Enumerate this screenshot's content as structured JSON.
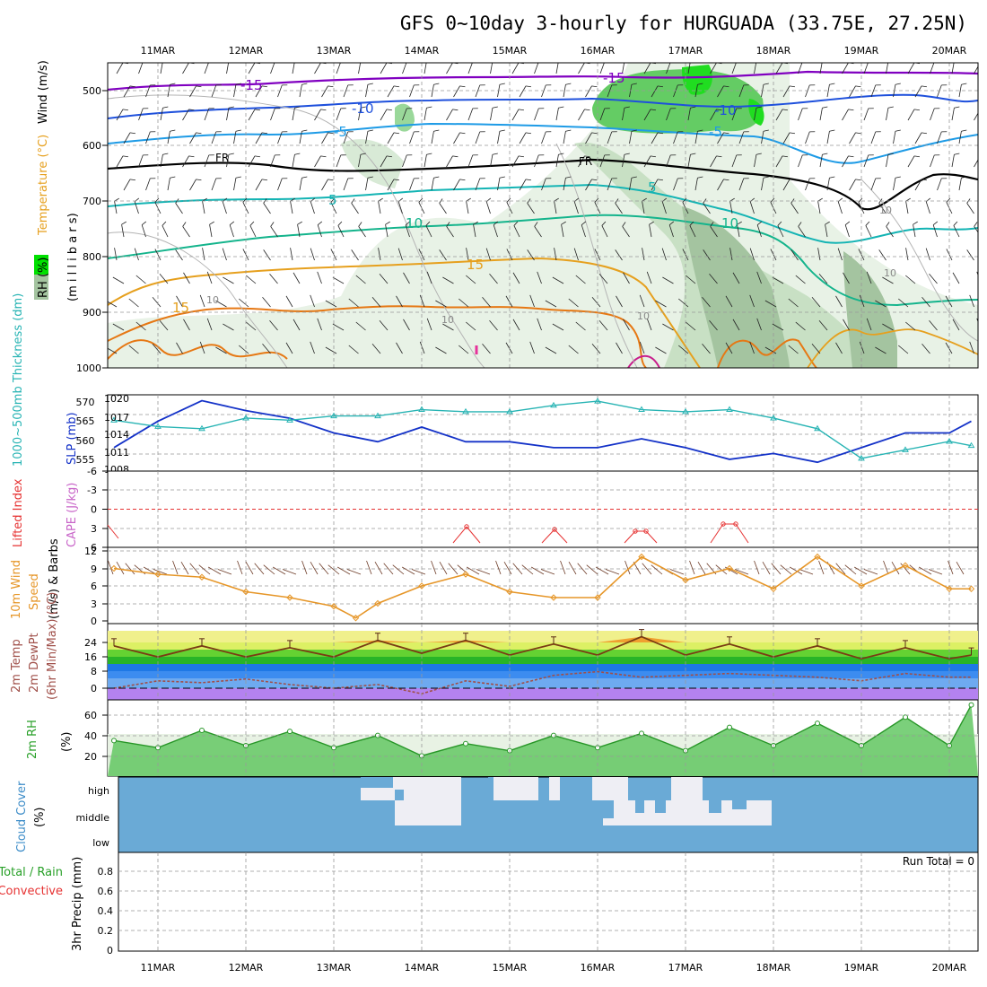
{
  "title": "GFS 0~10day 3-hourly for HURGUADA (33.75E, 27.25N)",
  "dates": [
    "11MAR",
    "12MAR",
    "13MAR",
    "14MAR",
    "15MAR",
    "16MAR",
    "17MAR",
    "18MAR",
    "19MAR",
    "20MAR"
  ],
  "colors": {
    "rh_green": "#00e000",
    "temp_purple": "#8000c0",
    "temp_blue": "#1e50dc",
    "temp_lightblue": "#1e9be6",
    "temp_cyan": "#14b4b4",
    "temp_teal": "#14b48c",
    "temp_orange": "#e6a01e",
    "temp_darkorange": "#e67814",
    "slp": "#1432c8",
    "thickness": "#28b4b4",
    "lifted": "#e63232",
    "cape": "#c864c8",
    "wind10m": "#e69628",
    "cloud": "#6aaad6",
    "rh2m": "#28a028"
  },
  "panels": {
    "upper": {
      "ylabel_rh": "RH (%)",
      "ylabel_temp": "Temperature (°C)",
      "ylabel_wind": "Wind (m/s)",
      "ylabel_mb": "(m i l l i b a r s)",
      "ticks": [
        "500",
        "600",
        "700",
        "800",
        "900",
        "1000"
      ],
      "labels": {
        "fr1": "FR",
        "fr2": "FR",
        "m15": "-15",
        "m15b": "-15",
        "m10": "-10",
        "m10b": "-10",
        "m5": "-5",
        "m5b": "-5",
        "p5": "5",
        "p5b": "5",
        "p10": "10",
        "p10b": "10",
        "p15": "15",
        "p15b": "15",
        "rh10a": "10",
        "rh10b": "10",
        "rh10c": "10",
        "rh10d": "10",
        "rh10e": "10"
      }
    },
    "slp": {
      "ylabel_left": "1000~500mb Thickness (dm)",
      "ylabel_right": "SLP (mb)",
      "ticks_left": [
        "570",
        "565",
        "560",
        "555"
      ],
      "ticks_right": [
        "1020",
        "1017",
        "1014",
        "1011",
        "1008"
      ]
    },
    "li": {
      "ylabel_left": "Lifted Index",
      "ylabel_right": "CAPE (J/kg)",
      "ticks": [
        "-6",
        "-3",
        "0",
        "3",
        "6"
      ]
    },
    "wind10": {
      "ylabel_left": "10m Wind",
      "ylabel_mid": "Speed",
      "ylabel_right": "(m/s) & Barbs",
      "ticks": [
        "12",
        "9",
        "6",
        "3",
        "0"
      ]
    },
    "temp2m": {
      "ylabel_a": "2m Temp",
      "ylabel_b": "2m DewPt",
      "ylabel_c": "(6hr Min/Max) (°C)",
      "ticks": [
        "24",
        "16",
        "8",
        "0"
      ]
    },
    "rh2m": {
      "ylabel": "2m RH",
      "unit": "(%)",
      "ticks": [
        "60",
        "40",
        "20"
      ]
    },
    "cloud": {
      "ylabel": "Cloud Cover",
      "unit": "(%)",
      "ticks": [
        "high",
        "middle",
        "low"
      ]
    },
    "precip": {
      "ylabel_a": "Total / Rain",
      "ylabel_b": "Convective",
      "ylabel_c": "3hr Precip (mm)",
      "ticks": [
        "0.8",
        "0.6",
        "0.4",
        "0.2",
        "0"
      ],
      "run_total": "Run Total = 0"
    }
  },
  "chart_data": [
    {
      "type": "line",
      "name": "SLP (mb)",
      "x": [
        "10MAR12",
        "11MAR00",
        "11MAR12",
        "12MAR00",
        "12MAR12",
        "13MAR00",
        "13MAR12",
        "14MAR00",
        "14MAR12",
        "15MAR00",
        "15MAR12",
        "16MAR00",
        "16MAR12",
        "17MAR00",
        "17MAR12",
        "18MAR00",
        "18MAR12",
        "19MAR00",
        "19MAR12",
        "20MAR00",
        "20MAR06"
      ],
      "values": [
        1011.5,
        1016,
        1019.5,
        1017.8,
        1016.5,
        1014,
        1012.5,
        1015,
        1012.5,
        1012.5,
        1011.5,
        1011.5,
        1013,
        1011.5,
        1009.5,
        1010.5,
        1009,
        1011.5,
        1014,
        1014,
        1016
      ],
      "ylim": [
        1008,
        1020
      ]
    },
    {
      "type": "line",
      "name": "1000~500mb Thickness (dm)",
      "x": [
        "10MAR12",
        "11MAR00",
        "11MAR12",
        "12MAR00",
        "12MAR12",
        "13MAR00",
        "13MAR12",
        "14MAR00",
        "14MAR12",
        "15MAR00",
        "15MAR12",
        "16MAR00",
        "16MAR12",
        "17MAR00",
        "17MAR12",
        "18MAR00",
        "18MAR12",
        "19MAR00",
        "19MAR12",
        "20MAR00",
        "20MAR06"
      ],
      "values": [
        565,
        563.5,
        563,
        565.5,
        565,
        566,
        566,
        567.5,
        567,
        567,
        568.5,
        569.5,
        567.5,
        567,
        567.5,
        565.5,
        563,
        556,
        558,
        560,
        559
      ],
      "ylim": [
        553,
        571
      ]
    },
    {
      "type": "line",
      "name": "Lifted Index",
      "x": [
        "10MAR12",
        "14MAR12",
        "15MAR12",
        "16MAR12",
        "17MAR12"
      ],
      "values": [
        5.5,
        2,
        2.5,
        2.5,
        1.5
      ],
      "ylim": [
        -6,
        6
      ]
    },
    {
      "type": "line",
      "name": "10m Wind Speed (m/s)",
      "x": [
        "10MAR12",
        "11MAR00",
        "11MAR12",
        "12MAR00",
        "12MAR12",
        "13MAR00",
        "13MAR06",
        "13MAR12",
        "14MAR00",
        "14MAR12",
        "15MAR00",
        "15MAR12",
        "16MAR00",
        "16MAR12",
        "17MAR00",
        "17MAR12",
        "18MAR00",
        "18MAR12",
        "19MAR00",
        "19MAR12",
        "20MAR00",
        "20MAR06"
      ],
      "values": [
        9,
        8,
        7.5,
        5,
        4,
        2.5,
        0.5,
        3,
        6,
        8,
        5,
        4,
        4,
        11,
        7,
        9,
        5.5,
        11,
        6,
        9.5,
        5.5,
        5.5
      ],
      "ylim": [
        0,
        12
      ]
    },
    {
      "type": "area",
      "name": "2m Temp (°C)",
      "x": [
        "10MAR12",
        "11MAR00",
        "11MAR12",
        "12MAR00",
        "12MAR12",
        "13MAR00",
        "13MAR12",
        "14MAR00",
        "14MAR12",
        "15MAR00",
        "15MAR12",
        "16MAR00",
        "16MAR12",
        "17MAR00",
        "17MAR12",
        "18MAR00",
        "18MAR12",
        "19MAR00",
        "19MAR12",
        "20MAR00",
        "20MAR06"
      ],
      "values": [
        23,
        17,
        23,
        17,
        22,
        17,
        26,
        19,
        26,
        18,
        24,
        18,
        28,
        18,
        24,
        17,
        23,
        16,
        22,
        16,
        18
      ],
      "ylim": [
        -4,
        28
      ]
    },
    {
      "type": "line",
      "name": "2m DewPt (°C)",
      "x": [
        "10MAR12",
        "11MAR00",
        "11MAR12",
        "12MAR00",
        "12MAR12",
        "13MAR00",
        "13MAR12",
        "14MAR00",
        "14MAR12",
        "15MAR00",
        "15MAR12",
        "16MAR00",
        "16MAR12",
        "17MAR00",
        "17MAR12",
        "18MAR00",
        "18MAR12",
        "19MAR00",
        "19MAR12",
        "20MAR00",
        "20MAR06"
      ],
      "values": [
        0,
        4,
        3,
        5,
        2,
        0,
        2,
        -3,
        4,
        1,
        7,
        9,
        6,
        7,
        8,
        7,
        6,
        4,
        8,
        6,
        6
      ],
      "ylim": [
        -4,
        28
      ]
    },
    {
      "type": "area",
      "name": "2m RH (%)",
      "x": [
        "10MAR12",
        "11MAR00",
        "11MAR12",
        "12MAR00",
        "12MAR12",
        "13MAR00",
        "13MAR12",
        "14MAR00",
        "14MAR12",
        "15MAR00",
        "15MAR12",
        "16MAR00",
        "16MAR12",
        "17MAR00",
        "17MAR12",
        "18MAR00",
        "18MAR12",
        "19MAR00",
        "19MAR12",
        "20MAR00",
        "20MAR06"
      ],
      "values": [
        35,
        28,
        45,
        30,
        44,
        28,
        40,
        20,
        32,
        25,
        40,
        28,
        42,
        25,
        48,
        30,
        52,
        30,
        58,
        30,
        70
      ],
      "ylim": [
        0,
        75
      ]
    },
    {
      "type": "bar",
      "name": "3hr Precip (mm)",
      "x": [
        "11MAR",
        "20MAR"
      ],
      "values": [
        0,
        0
      ],
      "ylim": [
        0,
        1
      ]
    }
  ]
}
